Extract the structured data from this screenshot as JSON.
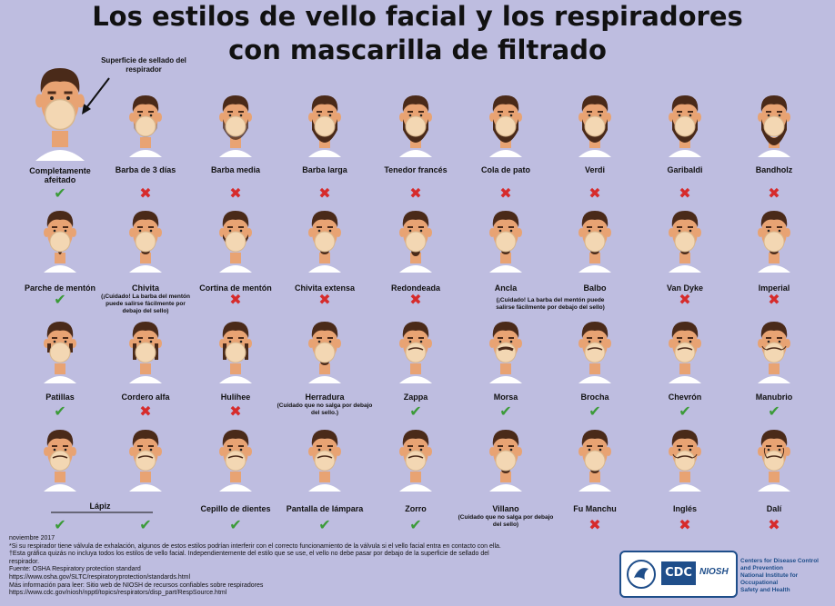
{
  "title": {
    "line1": "Los estilos de vello facial y los respiradores",
    "line2": "con mascarilla de filtrado"
  },
  "callout": "Superficie de sellado del respirador",
  "icons": {
    "ok": "check-mark-icon",
    "no": "cross-mark-icon"
  },
  "colors": {
    "ok": "#3b9b38",
    "no": "#d62b2b",
    "background": "#bebde0",
    "mask": "#f3d7b3",
    "hair": "#4a2a19",
    "skin": "#e8a373"
  },
  "styles": [
    {
      "name": "Completamente afeitado",
      "ok": true
    },
    {
      "name": "Barba de 3 días",
      "ok": false
    },
    {
      "name": "Barba media",
      "ok": false
    },
    {
      "name": "Barba larga",
      "ok": false
    },
    {
      "name": "Tenedor francés",
      "ok": false
    },
    {
      "name": "Cola de pato",
      "ok": false
    },
    {
      "name": "Verdi",
      "ok": false
    },
    {
      "name": "Garibaldi",
      "ok": false
    },
    {
      "name": "Bandholz",
      "ok": false
    },
    {
      "name": "Parche de mentón",
      "ok": true
    },
    {
      "name": "Chivita",
      "ok": true,
      "note": "(¡Cuidado! La barba del mentón puede salirse fácilmente por debajo del sello)"
    },
    {
      "name": "Cortina de mentón",
      "ok": false
    },
    {
      "name": "Chivita extensa",
      "ok": false
    },
    {
      "name": "Redondeada",
      "ok": false
    },
    {
      "name": "Ancla",
      "ok": true
    },
    {
      "name": "Balbo",
      "ok": true
    },
    {
      "name": "Van Dyke",
      "ok": false
    },
    {
      "name": "Imperial",
      "ok": false
    },
    {
      "name": "Patillas",
      "ok": true
    },
    {
      "name": "Cordero alfa",
      "ok": false
    },
    {
      "name": "Hulihee",
      "ok": false
    },
    {
      "name": "Herradura",
      "ok": true,
      "note": "(Cuidado que no salga por debajo del sello.)"
    },
    {
      "name": "Zappa",
      "ok": true
    },
    {
      "name": "Morsa",
      "ok": true
    },
    {
      "name": "Brocha",
      "ok": true
    },
    {
      "name": "Chevrón",
      "ok": true
    },
    {
      "name": "Manubrio",
      "ok": true
    },
    {
      "name": "",
      "ok": true
    },
    {
      "name": "",
      "ok": true
    },
    {
      "name": "Cepillo de dientes",
      "ok": true
    },
    {
      "name": "Pantalla de lámpara",
      "ok": true
    },
    {
      "name": "Zorro",
      "ok": true
    },
    {
      "name": "Villano",
      "ok": true,
      "note": "(Cuidado que no salga por debajo del sello)"
    },
    {
      "name": "Fu Manchu",
      "ok": false
    },
    {
      "name": "Inglés",
      "ok": false
    },
    {
      "name": "Dalí",
      "ok": false
    }
  ],
  "group_labels": {
    "ancla_balbo_note": "(¡Cuidado! La barba del mentón puede salirse fácilmente por debajo del sello)",
    "lapiz": "Lápiz"
  },
  "footer": [
    "noviembre 2017",
    "*Si su respirador tiene válvula de exhalación, algunos de estos estilos podrían interferir con el correcto funcionamiento de la válvula si el vello facial entra en contacto con ella.",
    "†Esta gráfica quizás no incluya todos los estilos de vello facial. Independientemente del estilo que se use, el vello no debe pasar por debajo de la superficie de sellado del",
    "respirador.",
    "Fuente: OSHA Respiratory protection standard",
    "https://www.osha.gov/SLTC/respiratoryprotection/standards.html",
    "Más información para leer: Sitio web de NIOSH de recursos confiables sobre respiradores",
    "https://www.cdc.gov/niosh/npptl/topics/respirators/disp_part/RespSource.html"
  ],
  "logo": {
    "cdc": "CDC",
    "niosh": "NIOSH",
    "org_lines": [
      "Centers for Disease Control",
      "and Prevention",
      "National Institute for Occupational",
      "Safety and Health"
    ]
  }
}
